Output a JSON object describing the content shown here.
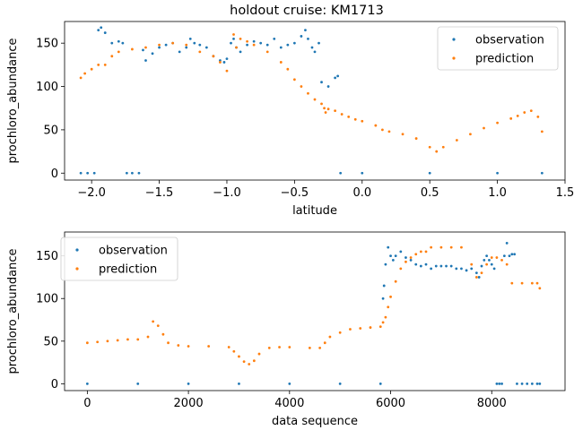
{
  "title": "holdout cruise: KM1713",
  "colors": {
    "observation": "#1f77b4",
    "prediction": "#ff7f0e"
  },
  "chart_data": [
    {
      "type": "scatter",
      "xlabel": "latitude",
      "ylabel": "prochloro_abundance",
      "xlim": [
        -2.2,
        1.5
      ],
      "ylim": [
        -8,
        175
      ],
      "xticks": [
        -2.0,
        -1.5,
        -1.0,
        -0.5,
        0.0,
        0.5,
        1.0,
        1.5
      ],
      "xtick_labels": [
        "−2.0",
        "−1.5",
        "−1.0",
        "−0.5",
        "0.0",
        "0.5",
        "1.0",
        "1.5"
      ],
      "yticks": [
        0,
        50,
        100,
        150
      ],
      "ytick_labels": [
        "0",
        "50",
        "100",
        "150"
      ],
      "legend": {
        "position": "top-right",
        "entries": [
          "observation",
          "prediction"
        ]
      },
      "series": [
        {
          "name": "observation",
          "x": [
            -2.08,
            -2.03,
            -1.98,
            -1.95,
            -1.93,
            -1.9,
            -1.85,
            -1.8,
            -1.77,
            -1.74,
            -1.7,
            -1.65,
            -1.62,
            -1.6,
            -1.55,
            -1.5,
            -1.45,
            -1.4,
            -1.35,
            -1.3,
            -1.27,
            -1.24,
            -1.2,
            -1.15,
            -1.1,
            -1.05,
            -1.02,
            -1.0,
            -0.97,
            -0.95,
            -0.93,
            -0.9,
            -0.85,
            -0.8,
            -0.75,
            -0.7,
            -0.65,
            -0.6,
            -0.55,
            -0.5,
            -0.45,
            -0.42,
            -0.4,
            -0.37,
            -0.35,
            -0.32,
            -0.3,
            -0.25,
            -0.2,
            -0.18,
            -0.16,
            0.0,
            0.5,
            1.0,
            1.33
          ],
          "y": [
            0,
            0,
            0,
            165,
            168,
            162,
            150,
            152,
            150,
            0,
            0,
            0,
            142,
            130,
            138,
            145,
            148,
            150,
            140,
            145,
            155,
            150,
            148,
            145,
            135,
            130,
            128,
            132,
            150,
            155,
            145,
            140,
            148,
            152,
            150,
            148,
            155,
            145,
            148,
            150,
            158,
            165,
            155,
            145,
            140,
            150,
            105,
            100,
            110,
            112,
            0,
            0,
            0,
            0,
            0
          ]
        },
        {
          "name": "prediction",
          "x": [
            -2.08,
            -2.05,
            -2.0,
            -1.95,
            -1.9,
            -1.85,
            -1.8,
            -1.7,
            -1.6,
            -1.5,
            -1.4,
            -1.3,
            -1.2,
            -1.1,
            -1.05,
            -1.0,
            -0.95,
            -0.93,
            -0.9,
            -0.85,
            -0.8,
            -0.7,
            -0.6,
            -0.55,
            -0.5,
            -0.45,
            -0.4,
            -0.35,
            -0.3,
            -0.28,
            -0.27,
            -0.25,
            -0.2,
            -0.15,
            -0.1,
            -0.05,
            0.0,
            0.1,
            0.15,
            0.2,
            0.3,
            0.4,
            0.5,
            0.55,
            0.6,
            0.7,
            0.8,
            0.9,
            1.0,
            1.1,
            1.15,
            1.2,
            1.25,
            1.3,
            1.33
          ],
          "y": [
            110,
            115,
            120,
            125,
            125,
            135,
            140,
            143,
            145,
            148,
            150,
            148,
            140,
            135,
            128,
            118,
            160,
            145,
            155,
            152,
            148,
            140,
            128,
            120,
            108,
            100,
            92,
            85,
            80,
            75,
            70,
            74,
            72,
            68,
            65,
            62,
            60,
            55,
            50,
            48,
            45,
            40,
            30,
            25,
            30,
            38,
            45,
            52,
            58,
            63,
            66,
            70,
            72,
            65,
            48
          ]
        }
      ]
    },
    {
      "type": "scatter",
      "xlabel": "data sequence",
      "ylabel": "prochloro_abundance",
      "xlim": [
        -450,
        9450
      ],
      "ylim": [
        -8,
        178
      ],
      "xticks": [
        0,
        2000,
        4000,
        6000,
        8000
      ],
      "xtick_labels": [
        "0",
        "2000",
        "4000",
        "6000",
        "8000"
      ],
      "yticks": [
        0,
        50,
        100,
        150
      ],
      "ytick_labels": [
        "0",
        "50",
        "100",
        "150"
      ],
      "legend": {
        "position": "top-left",
        "entries": [
          "observation",
          "prediction"
        ]
      },
      "series": [
        {
          "name": "observation",
          "x": [
            0,
            1000,
            2000,
            3000,
            4000,
            5000,
            5800,
            5850,
            5870,
            5900,
            5950,
            6000,
            6050,
            6100,
            6200,
            6300,
            6400,
            6500,
            6600,
            6700,
            6800,
            6900,
            7000,
            7100,
            7200,
            7300,
            7400,
            7500,
            7600,
            7700,
            7750,
            7800,
            7850,
            7900,
            7950,
            8000,
            8050,
            8100,
            8150,
            8200,
            8250,
            8300,
            8350,
            8400,
            8450,
            8500,
            8600,
            8700,
            8800,
            8900,
            8950
          ],
          "y": [
            0,
            0,
            0,
            0,
            0,
            0,
            0,
            100,
            115,
            140,
            160,
            150,
            145,
            150,
            155,
            148,
            145,
            140,
            138,
            140,
            135,
            138,
            138,
            138,
            138,
            135,
            135,
            133,
            135,
            130,
            125,
            138,
            145,
            150,
            145,
            140,
            135,
            0,
            0,
            0,
            150,
            165,
            150,
            152,
            152,
            0,
            0,
            0,
            0,
            0,
            0
          ]
        },
        {
          "name": "prediction",
          "x": [
            0,
            200,
            400,
            600,
            800,
            1000,
            1200,
            1300,
            1400,
            1500,
            1600,
            1800,
            2000,
            2400,
            2800,
            2900,
            3000,
            3100,
            3200,
            3300,
            3400,
            3600,
            3800,
            4000,
            4400,
            4600,
            4700,
            4800,
            5000,
            5200,
            5400,
            5600,
            5800,
            5850,
            5900,
            5950,
            6000,
            6100,
            6200,
            6300,
            6400,
            6500,
            6600,
            6700,
            6800,
            7000,
            7200,
            7400,
            7600,
            7700,
            7800,
            7900,
            8000,
            8100,
            8200,
            8300,
            8400,
            8600,
            8800,
            8900,
            8950
          ],
          "y": [
            48,
            49,
            50,
            51,
            52,
            52,
            55,
            73,
            68,
            58,
            48,
            45,
            44,
            44,
            43,
            38,
            32,
            26,
            23,
            27,
            35,
            42,
            43,
            43,
            42,
            42,
            48,
            55,
            60,
            64,
            65,
            66,
            67,
            72,
            78,
            90,
            102,
            120,
            135,
            143,
            148,
            152,
            155,
            155,
            160,
            160,
            160,
            160,
            140,
            125,
            130,
            140,
            148,
            148,
            145,
            140,
            118,
            118,
            118,
            118,
            112
          ]
        }
      ]
    }
  ]
}
